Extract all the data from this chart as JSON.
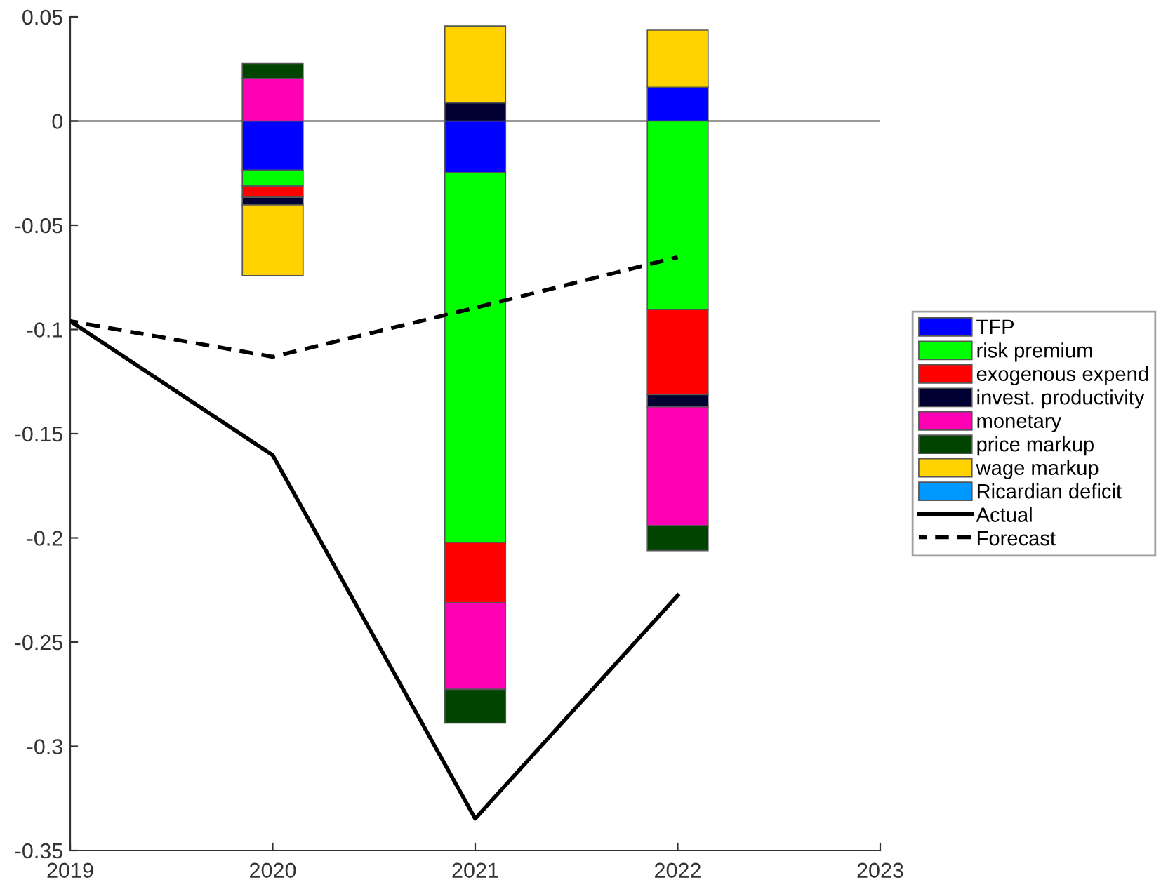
{
  "chart_data": {
    "type": "bar",
    "stacked": true,
    "x": [
      2020,
      2021,
      2022
    ],
    "series": [
      {
        "name": "TFP",
        "color": "#0000ff",
        "values": [
          -0.0236,
          -0.0247,
          0.0162
        ]
      },
      {
        "name": "risk premium",
        "color": "#00ff00",
        "values": [
          -0.0076,
          -0.1775,
          -0.0905
        ]
      },
      {
        "name": "exogenous expend",
        "color": "#ff0000",
        "values": [
          -0.0054,
          -0.029,
          -0.0408
        ]
      },
      {
        "name": "invest. productivity",
        "color": "#000033",
        "values": [
          -0.0036,
          0.0088,
          -0.0058
        ]
      },
      {
        "name": "monetary",
        "color": "#ff00b4",
        "values": [
          0.0204,
          -0.0415,
          -0.057
        ]
      },
      {
        "name": "price markup",
        "color": "#004400",
        "values": [
          0.0072,
          -0.0162,
          -0.012
        ]
      },
      {
        "name": "wage markup",
        "color": "#ffd200",
        "values": [
          -0.034,
          0.0368,
          0.0274
        ]
      },
      {
        "name": "Ricardian deficit",
        "color": "#0099ff",
        "values": [
          null,
          null,
          null
        ]
      },
      {
        "name": "Actual",
        "type": "line",
        "color": "#000000",
        "line_style": "solid",
        "x": [
          2019,
          2020,
          2021,
          2022
        ],
        "values": [
          -0.096,
          -0.1603,
          -0.3347,
          -0.2276
        ]
      },
      {
        "name": "Forecast",
        "type": "line",
        "color": "#000000",
        "line_style": "dashed",
        "x": [
          2019,
          2020,
          2021,
          2022
        ],
        "values": [
          -0.096,
          -0.1131,
          -0.0896,
          -0.0653
        ]
      }
    ],
    "xlim": [
      2019,
      2023
    ],
    "xticks": [
      2019,
      2020,
      2021,
      2022,
      2023
    ],
    "ylim": [
      -0.35,
      0.05
    ],
    "yticks": [
      -0.35,
      -0.3,
      -0.25,
      -0.2,
      -0.15,
      -0.1,
      -0.05,
      0,
      0.05
    ],
    "ref_lines": [
      {
        "axis": "y",
        "value": 0,
        "color": "#999999"
      }
    ],
    "grid": false,
    "legend": "right"
  }
}
